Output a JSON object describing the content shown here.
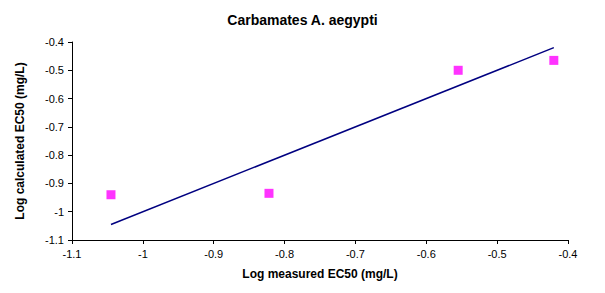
{
  "chart_data": {
    "type": "scatter",
    "title": "Carbamates A. aegypti",
    "xlabel": "Log measured EC50 (mg/L)",
    "ylabel": "Log calculated EC50 (mg/L)",
    "xlim": [
      -1.1,
      -0.4
    ],
    "xticks": [
      -1.1,
      -1,
      -0.9,
      -0.8,
      -0.7,
      -0.6,
      -0.5,
      -0.4
    ],
    "ylim": [
      -1.1,
      -0.4
    ],
    "yticks": [
      -1.1,
      -1,
      -0.9,
      -0.8,
      -0.7,
      -0.6,
      -0.5,
      -0.4
    ],
    "grid": false,
    "series": [
      {
        "type": "scatter",
        "color": "#ff00ff",
        "marker": "square",
        "x": [
          -1.045,
          -0.822,
          -0.555,
          -0.42
        ],
        "values": [
          -0.94,
          -0.935,
          -0.5,
          -0.465
        ]
      },
      {
        "type": "line",
        "color": "#000080",
        "line_style": "solid",
        "x": [
          -1.045,
          -0.42
        ],
        "values": [
          -1.045,
          -0.42
        ]
      }
    ]
  }
}
